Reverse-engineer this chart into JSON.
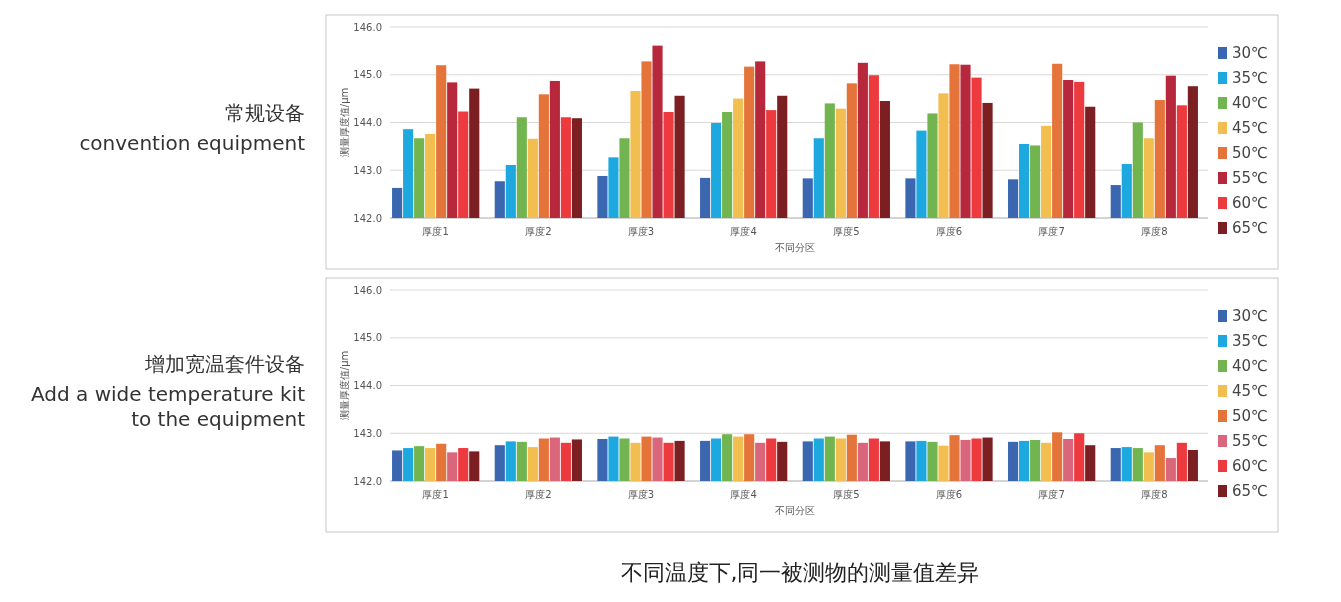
{
  "chart_data": [
    {
      "type": "bar",
      "title": "常规设备",
      "subtitle": "convention equipment",
      "xlabel": "不同分区",
      "ylabel": "测量厚度值/μm",
      "categories": [
        "厚度1",
        "厚度2",
        "厚度3",
        "厚度4",
        "厚度5",
        "厚度6",
        "厚度7",
        "厚度8"
      ],
      "series": [
        {
          "name": "30℃",
          "color": "#3a67b0",
          "values": [
            142.63,
            142.77,
            142.88,
            142.84,
            142.83,
            142.83,
            142.81,
            142.69
          ]
        },
        {
          "name": "35℃",
          "color": "#1ea8e0",
          "values": [
            143.86,
            143.11,
            143.27,
            143.99,
            143.67,
            143.83,
            143.55,
            143.13
          ]
        },
        {
          "name": "40℃",
          "color": "#72b550",
          "values": [
            143.67,
            144.11,
            143.67,
            144.22,
            144.4,
            144.19,
            143.52,
            144.0
          ]
        },
        {
          "name": "45℃",
          "color": "#f2be50",
          "values": [
            143.76,
            143.66,
            144.66,
            144.5,
            144.29,
            144.61,
            143.93,
            143.67
          ]
        },
        {
          "name": "50℃",
          "color": "#e5743a",
          "values": [
            145.2,
            144.59,
            145.28,
            145.17,
            144.82,
            145.22,
            145.23,
            144.47
          ]
        },
        {
          "name": "55℃",
          "color": "#b8283c",
          "values": [
            144.84,
            144.87,
            145.61,
            145.28,
            145.25,
            145.21,
            144.89,
            144.98
          ]
        },
        {
          "name": "60℃",
          "color": "#ec3a3e",
          "values": [
            144.23,
            144.11,
            144.22,
            144.26,
            144.99,
            144.94,
            144.85,
            144.36
          ]
        },
        {
          "name": "65℃",
          "color": "#7b1f22",
          "values": [
            144.71,
            144.09,
            144.56,
            144.56,
            144.45,
            144.41,
            144.33,
            144.76
          ]
        }
      ],
      "ylim": [
        142,
        146
      ],
      "yticks": [
        {
          "value": 142,
          "label": "142.0"
        },
        {
          "value": 143,
          "label": "143.0"
        },
        {
          "value": 144,
          "label": "144.0"
        },
        {
          "value": 145,
          "label": "145.0"
        },
        {
          "value": 146,
          "label": "146.0"
        }
      ],
      "grid": "y",
      "legend": "right"
    },
    {
      "type": "bar",
      "title": "增加宽温套件设备",
      "subtitle": "Add a wide temperature kit to the equipment",
      "xlabel": "不同分区",
      "ylabel": "测量厚度值/μm",
      "categories": [
        "厚度1",
        "厚度2",
        "厚度3",
        "厚度4",
        "厚度5",
        "厚度6",
        "厚度7",
        "厚度8"
      ],
      "series": [
        {
          "name": "30℃",
          "color": "#3a67b0",
          "values": [
            142.64,
            142.75,
            142.88,
            142.84,
            142.83,
            142.83,
            142.82,
            142.69
          ]
        },
        {
          "name": "35℃",
          "color": "#1ea8e0",
          "values": [
            142.69,
            142.83,
            142.93,
            142.89,
            142.89,
            142.84,
            142.84,
            142.71
          ]
        },
        {
          "name": "40℃",
          "color": "#72b550",
          "values": [
            142.73,
            142.82,
            142.89,
            142.98,
            142.93,
            142.82,
            142.86,
            142.69
          ]
        },
        {
          "name": "45℃",
          "color": "#f2be50",
          "values": [
            142.69,
            142.71,
            142.8,
            142.93,
            142.89,
            142.74,
            142.8,
            142.6
          ]
        },
        {
          "name": "50℃",
          "color": "#e5743a",
          "values": [
            142.78,
            142.89,
            142.93,
            142.98,
            142.97,
            142.96,
            143.02,
            142.75
          ]
        },
        {
          "name": "55℃",
          "color": "#d9667a",
          "values": [
            142.6,
            142.91,
            142.91,
            142.8,
            142.8,
            142.86,
            142.88,
            142.48
          ]
        },
        {
          "name": "60℃",
          "color": "#ec3a3e",
          "values": [
            142.69,
            142.8,
            142.8,
            142.89,
            142.89,
            142.89,
            143.0,
            142.8
          ]
        },
        {
          "name": "65℃",
          "color": "#7b1f22",
          "values": [
            142.62,
            142.87,
            142.84,
            142.82,
            142.83,
            142.91,
            142.75,
            142.65
          ]
        }
      ],
      "ylim": [
        142,
        146
      ],
      "yticks": [
        {
          "value": 142,
          "label": "142.0"
        },
        {
          "value": 143,
          "label": "143.0"
        },
        {
          "value": 144,
          "label": "144.0"
        },
        {
          "value": 145,
          "label": "145.0"
        },
        {
          "value": 146,
          "label": "146.0"
        }
      ],
      "grid": "y",
      "legend": "right",
      "annotations": [
        "不同温度下,同一被测物的测量值差异"
      ]
    }
  ]
}
